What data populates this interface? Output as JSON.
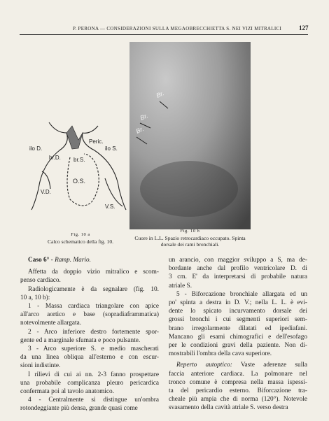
{
  "header": {
    "running_title": "P. PERONA — CONSIDERAZIONI SULLA MEGAOBRECCHIETTA S. NEI VIZI MITRALICI",
    "page_number": "127"
  },
  "figure_a": {
    "labels": [
      "Peric.",
      "ilo D.",
      "ilo S.",
      "br.D.",
      "br.S.",
      "O.S.",
      "V.D.",
      "V.S."
    ],
    "caption_number": "Fig. 10 a",
    "caption": "Calco schematico della fig. 10."
  },
  "figure_b": {
    "labels": [
      "Br.",
      "Br.",
      "Br."
    ],
    "caption_number": "Fig. 10 b",
    "caption": [
      "Cuore in L.L. Spazio retrocardiaco occupato. Spinta",
      "dorsale dei rami bronchiali."
    ]
  },
  "case": {
    "number": "Caso 6°",
    "name": "- Ramp. Mario."
  },
  "left_column": [
    {
      "lines": [
        "Affetta da doppio vizio mitralico e scom-",
        "penso cardiaco."
      ]
    },
    {
      "lines": [
        "Radiologicamente è da segnalare (fig. 10.",
        "10 a, 10 b):"
      ]
    },
    {
      "lines": [
        "1 - Massa cardiaca triangolare con apice",
        "all'arco aortico e base (sopradiaframmatica)",
        "notevolmente allargata."
      ]
    },
    {
      "lines": [
        "2 - Arco inferiore destro fortemente spor-",
        "gente ed a marginale sfumata e poco pulsante."
      ]
    },
    {
      "lines": [
        "3 - Arco superiore S. e medio mascherati",
        "da una linea obliqua all'esterno e con escur-",
        "sioni indistinte."
      ]
    },
    {
      "lines": [
        "I rilievi di cui ai nn. 2-3 fanno prospettare",
        "una probabile complicanza pleuro pericardica",
        "confermata poi al tavolo anatomico."
      ]
    },
    {
      "lines": [
        "4 - Centralmente si distingue un'ombra",
        "rotondeggiante più densa, grande quasi come"
      ]
    }
  ],
  "right_column": [
    {
      "lines": [
        "un arancio, con maggior sviluppo a S, ma de-",
        "bordante anche dal profilo ventricolare D. di",
        "3 cm. E' da interpretarsi di probabile natura",
        "atriale S."
      ]
    },
    {
      "lines": [
        "5 - Biforcazione bronchiale allargata ed un",
        "po' spinta a destra in D. V.; nella L. L. è evi-",
        "dente lo spicato incurvamento dorsale dei",
        "grossi bronchi i cui segmenti superiori sem-",
        "brano irregolarmente dilatati ed ipediafani.",
        "Mancano gli esami chimografici e dell'esofago",
        "per le condizioni gravi della paziente. Non di-",
        "mostrabili l'ombra della cava superiore."
      ]
    },
    {
      "lead": "Reperto autoptico:",
      "lines": [
        "Vaste aderenze sulla",
        "faccia anteriore cardiaca. La polmonare nel",
        "tronco comune è compresa nella massa ispessi-",
        "ta del pericardio esterno. Biforcazione tra-",
        "cheale più ampia che di norma (120°). Notevole",
        "svasamento della cavità atriale S. verso destra"
      ]
    }
  ]
}
